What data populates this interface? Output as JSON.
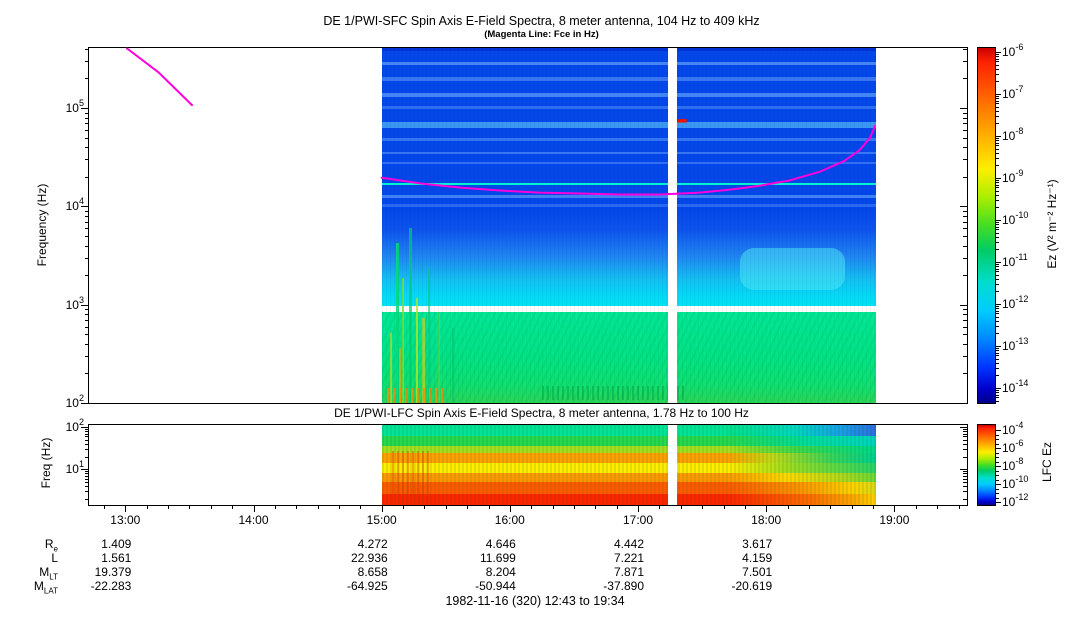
{
  "figure": {
    "title": "DE 1/PWI-SFC  Spin Axis E-Field Spectra, 8 meter antenna, 104 Hz to 409 kHz",
    "subtitle": "(Magenta Line: Fce in Hz)",
    "caption": "1982-11-16 (320) 12:43 to 19:34"
  },
  "sfc_panel": {
    "ylabel": "Frequency (Hz)",
    "y_tick_exponents": [
      5,
      4,
      3,
      2
    ],
    "colorbar": {
      "label": "Ez (V² m⁻² Hz⁻¹)",
      "tick_exponents": [
        -6,
        -7,
        -8,
        -9,
        -10,
        -11,
        -12,
        -13,
        -14
      ]
    }
  },
  "lfc_panel": {
    "title": "DE 1/PWI-LFC  Spin Axis E-Field Spectra, 8 meter antenna, 1.78 Hz to 100 Hz",
    "ylabel": "Freq (Hz)",
    "y_tick_exponents": [
      2,
      1
    ],
    "colorbar": {
      "label": "LFC Ez",
      "tick_exponents": [
        -4,
        -6,
        -8,
        -10,
        -12
      ]
    }
  },
  "time_axis": {
    "labels": [
      "13:00",
      "14:00",
      "15:00",
      "16:00",
      "17:00",
      "18:00",
      "19:00"
    ],
    "hours": [
      13,
      14,
      15,
      16,
      17,
      18,
      19
    ],
    "start_hour": 12.7167,
    "end_hour": 19.5667,
    "start": "12:43",
    "end": "19:34"
  },
  "ephemeris": {
    "column_hours": [
      13,
      15,
      16,
      17,
      18
    ],
    "rows": [
      {
        "label": "R",
        "sub": "e",
        "values": [
          "1.409",
          "4.272",
          "4.646",
          "4.442",
          "3.617"
        ]
      },
      {
        "label": "L",
        "sub": "",
        "values": [
          "1.561",
          "22.936",
          "11.699",
          "7.221",
          "4.159"
        ]
      },
      {
        "label": "M",
        "sub": "LT",
        "values": [
          "19.379",
          "8.658",
          "8.204",
          "7.871",
          "7.501"
        ]
      },
      {
        "label": "M",
        "sub": "LAT",
        "values": [
          "-22.283",
          "-64.925",
          "-50.944",
          "-37.890",
          "-20.619"
        ]
      }
    ]
  },
  "palette": {
    "magenta": "#ff00dd",
    "artifact_cyan": "#00f2ce",
    "spot_red": "#e81400",
    "base_blue": "#0347e8",
    "rainbow_top": "#cc0000",
    "rainbow_bottom": "#000088"
  },
  "chart_data": {
    "type": "heatmap",
    "panels": [
      {
        "name": "SFC",
        "title": "DE 1/PWI-SFC  Spin Axis E-Field Spectra, 8 meter antenna, 104 Hz to 409 kHz",
        "x_range_time": [
          "12:43",
          "19:34"
        ],
        "y_range_hz": [
          100,
          409000
        ],
        "y_scale": "log",
        "colorbar_range": [
          1e-14,
          1e-06
        ],
        "colorbar_label": "Ez (V² m⁻² Hz⁻¹)",
        "features": [
          "no data before 15:00 (white)",
          "blue background above 10 kHz with lighter horizontal banding",
          "blue-to-cyan gradient between 10 kHz and 1 kHz",
          "white horizontal gap near 1 kHz",
          "green emission band 100 Hz - 900 Hz with yellow/orange bursts near 15:05",
          "bright cyan patch near 2-4 kHz between 17:45 and 18:30",
          "small red spot near 74 kHz just after 17:18 data gap"
        ]
      },
      {
        "name": "LFC",
        "title": "DE 1/PWI-LFC  Spin Axis E-Field Spectra, 8 meter antenna, 1.78 Hz to 100 Hz",
        "x_range_time": [
          "12:43",
          "19:34"
        ],
        "y_range_hz": [
          1.78,
          100
        ],
        "y_scale": "log",
        "colorbar_range": [
          1e-12,
          0.0001
        ],
        "colorbar_label": "LFC Ez",
        "features": [
          "intensity increases toward low frequency: green near 100 Hz through yellow and orange to red near 2 Hz",
          "after ~17:45 all bands weaken toward blue/green/yellow"
        ]
      }
    ],
    "coverage_hours": [
      15.0,
      18.853
    ],
    "gap_hours": [
      17.233,
      17.303
    ],
    "artifact_line_hz": 17000,
    "red_spot": {
      "t": [
        17.31,
        17.38
      ],
      "hz": 74000
    },
    "fce_line_segments": [
      [
        [
          13.013,
          404000
        ],
        [
          13.26,
          230000
        ],
        [
          13.52,
          107000
        ]
      ],
      [
        [
          15.0,
          19500
        ],
        [
          15.3,
          17100
        ],
        [
          15.61,
          15500
        ],
        [
          15.92,
          14500
        ],
        [
          16.23,
          13800
        ],
        [
          16.55,
          13500
        ],
        [
          16.86,
          13200
        ],
        [
          17.17,
          13200
        ],
        [
          17.48,
          13800
        ],
        [
          17.72,
          14800
        ],
        [
          17.95,
          16200
        ],
        [
          18.18,
          18300
        ],
        [
          18.42,
          22500
        ],
        [
          18.61,
          29000
        ],
        [
          18.73,
          37500
        ],
        [
          18.81,
          49700
        ],
        [
          18.85,
          65800
        ]
      ]
    ]
  }
}
